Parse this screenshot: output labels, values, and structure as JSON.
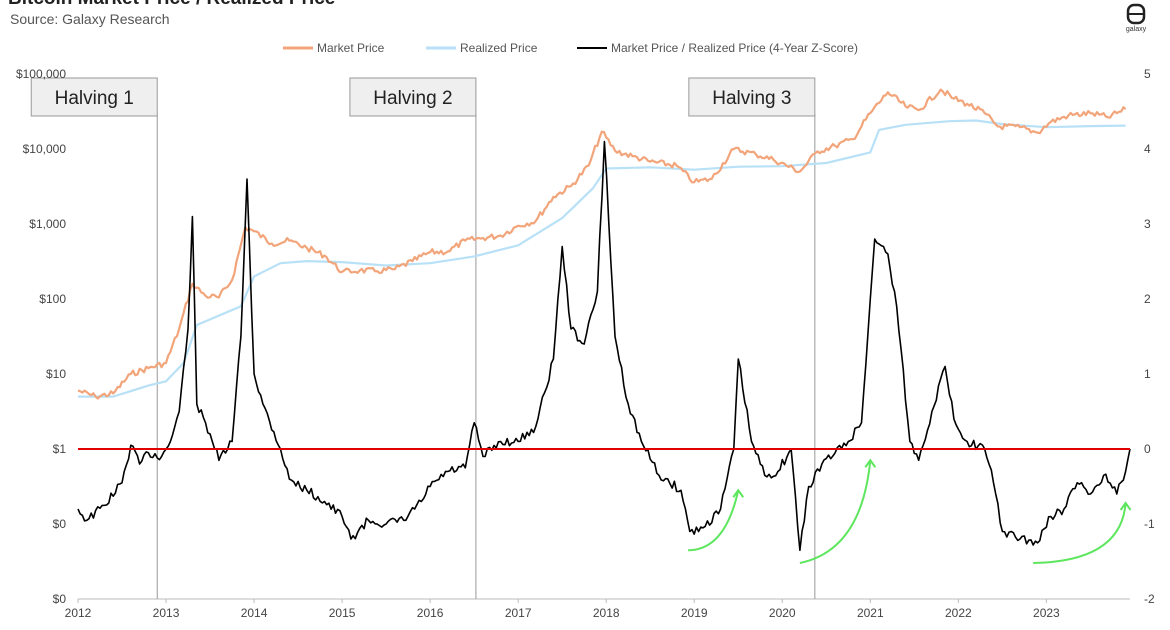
{
  "header": {
    "title": "Bitcoin Market Price / Realized Price",
    "subtitle": "Source: Galaxy Research",
    "logo_text": "galaxy"
  },
  "chart_data": {
    "type": "line",
    "title": "Bitcoin Market Price / Realized Price",
    "subtitle": "Source: Galaxy Research",
    "x_ticks": [
      "2012",
      "2013",
      "2014",
      "2015",
      "2016",
      "2017",
      "2018",
      "2019",
      "2020",
      "2021",
      "2022",
      "2023"
    ],
    "xlim": [
      2012.0,
      2023.95
    ],
    "y_left": {
      "scale": "log",
      "ticks": [
        "$0",
        "$0",
        "$1",
        "$10",
        "$100",
        "$1,000",
        "$10,000",
        "$100,000"
      ],
      "tick_values": [
        0.01,
        0.1,
        1,
        10,
        100,
        1000,
        10000,
        100000
      ],
      "ylim": [
        0.01,
        100000
      ]
    },
    "y_right": {
      "scale": "linear",
      "ticks": [
        "-2",
        "-1",
        "0",
        "1",
        "2",
        "3",
        "4",
        "5"
      ],
      "tick_values": [
        -2,
        -1,
        0,
        1,
        2,
        3,
        4,
        5
      ],
      "ylim": [
        -2,
        5
      ]
    },
    "legend": {
      "placement": "top",
      "entries": [
        "Market Price",
        "Realized Price",
        "Market Price / Realized Price (4-Year Z-Score)"
      ]
    },
    "halvings": [
      {
        "label": "Halving 1",
        "x": 2012.9
      },
      {
        "label": "Halving 2",
        "x": 2016.52
      },
      {
        "label": "Halving 3",
        "x": 2020.37
      }
    ],
    "reference_line": {
      "axis": "right",
      "value": 0
    },
    "series": [
      {
        "name": "Market Price",
        "axis": "left",
        "color": "#f2a57a",
        "points": [
          [
            2012.0,
            6
          ],
          [
            2012.2,
            5
          ],
          [
            2012.4,
            5.5
          ],
          [
            2012.6,
            10
          ],
          [
            2012.8,
            12
          ],
          [
            2013.0,
            14
          ],
          [
            2013.15,
            40
          ],
          [
            2013.3,
            160
          ],
          [
            2013.45,
            110
          ],
          [
            2013.6,
            105
          ],
          [
            2013.75,
            180
          ],
          [
            2013.9,
            900
          ],
          [
            2014.0,
            800
          ],
          [
            2014.2,
            550
          ],
          [
            2014.4,
            600
          ],
          [
            2014.6,
            480
          ],
          [
            2014.8,
            380
          ],
          [
            2015.0,
            230
          ],
          [
            2015.2,
            240
          ],
          [
            2015.4,
            235
          ],
          [
            2015.6,
            250
          ],
          [
            2015.8,
            320
          ],
          [
            2016.0,
            420
          ],
          [
            2016.2,
            430
          ],
          [
            2016.4,
            600
          ],
          [
            2016.6,
            650
          ],
          [
            2016.8,
            700
          ],
          [
            2017.0,
            950
          ],
          [
            2017.2,
            1100
          ],
          [
            2017.4,
            2300
          ],
          [
            2017.6,
            3200
          ],
          [
            2017.8,
            6000
          ],
          [
            2017.95,
            17000
          ],
          [
            2018.1,
            9500
          ],
          [
            2018.3,
            8000
          ],
          [
            2018.5,
            6800
          ],
          [
            2018.8,
            6000
          ],
          [
            2019.0,
            3600
          ],
          [
            2019.2,
            4000
          ],
          [
            2019.45,
            10000
          ],
          [
            2019.7,
            8500
          ],
          [
            2019.9,
            7200
          ],
          [
            2020.2,
            5000
          ],
          [
            2020.4,
            9300
          ],
          [
            2020.6,
            11000
          ],
          [
            2020.8,
            13500
          ],
          [
            2021.0,
            30000
          ],
          [
            2021.2,
            57000
          ],
          [
            2021.4,
            37000
          ],
          [
            2021.55,
            33000
          ],
          [
            2021.8,
            62000
          ],
          [
            2021.95,
            47000
          ],
          [
            2022.1,
            40000
          ],
          [
            2022.3,
            30000
          ],
          [
            2022.45,
            20000
          ],
          [
            2022.7,
            19500
          ],
          [
            2022.9,
            16500
          ],
          [
            2023.05,
            23000
          ],
          [
            2023.25,
            28000
          ],
          [
            2023.5,
            30000
          ],
          [
            2023.7,
            26500
          ],
          [
            2023.9,
            34000
          ]
        ]
      },
      {
        "name": "Realized Price",
        "axis": "left",
        "color": "#b8e1f7",
        "points": [
          [
            2012.0,
            5
          ],
          [
            2012.4,
            5
          ],
          [
            2012.8,
            7
          ],
          [
            2013.0,
            8
          ],
          [
            2013.2,
            14
          ],
          [
            2013.35,
            45
          ],
          [
            2013.6,
            60
          ],
          [
            2013.85,
            80
          ],
          [
            2014.0,
            200
          ],
          [
            2014.3,
            300
          ],
          [
            2014.6,
            320
          ],
          [
            2015.0,
            310
          ],
          [
            2015.5,
            280
          ],
          [
            2016.0,
            300
          ],
          [
            2016.5,
            370
          ],
          [
            2017.0,
            520
          ],
          [
            2017.5,
            1200
          ],
          [
            2017.85,
            3000
          ],
          [
            2018.0,
            5500
          ],
          [
            2018.5,
            5700
          ],
          [
            2019.0,
            5300
          ],
          [
            2019.5,
            5800
          ],
          [
            2020.0,
            5900
          ],
          [
            2020.5,
            6500
          ],
          [
            2021.0,
            9000
          ],
          [
            2021.1,
            18000
          ],
          [
            2021.4,
            21000
          ],
          [
            2021.9,
            23500
          ],
          [
            2022.2,
            24000
          ],
          [
            2022.5,
            21500
          ],
          [
            2023.0,
            19500
          ],
          [
            2023.5,
            20200
          ],
          [
            2023.9,
            20500
          ]
        ]
      },
      {
        "name": "Market Price / Realized Price (4-Year Z-Score)",
        "axis": "right",
        "color": "#000000",
        "points": [
          [
            2012.0,
            -0.8
          ],
          [
            2012.1,
            -0.95
          ],
          [
            2012.3,
            -0.75
          ],
          [
            2012.5,
            -0.45
          ],
          [
            2012.6,
            0.05
          ],
          [
            2012.7,
            -0.2
          ],
          [
            2012.8,
            -0.05
          ],
          [
            2012.95,
            -0.1
          ],
          [
            2013.05,
            0.1
          ],
          [
            2013.15,
            0.5
          ],
          [
            2013.25,
            1.6
          ],
          [
            2013.3,
            3.1
          ],
          [
            2013.35,
            0.6
          ],
          [
            2013.5,
            0.2
          ],
          [
            2013.6,
            -0.15
          ],
          [
            2013.75,
            0.1
          ],
          [
            2013.85,
            1.5
          ],
          [
            2013.92,
            3.6
          ],
          [
            2014.0,
            1.0
          ],
          [
            2014.1,
            0.6
          ],
          [
            2014.3,
            0.0
          ],
          [
            2014.4,
            -0.4
          ],
          [
            2014.6,
            -0.55
          ],
          [
            2014.8,
            -0.7
          ],
          [
            2015.0,
            -0.9
          ],
          [
            2015.1,
            -1.2
          ],
          [
            2015.3,
            -0.95
          ],
          [
            2015.5,
            -1.0
          ],
          [
            2015.7,
            -0.95
          ],
          [
            2015.9,
            -0.7
          ],
          [
            2016.0,
            -0.5
          ],
          [
            2016.2,
            -0.3
          ],
          [
            2016.4,
            -0.25
          ],
          [
            2016.5,
            0.35
          ],
          [
            2016.6,
            -0.1
          ],
          [
            2016.8,
            0.1
          ],
          [
            2017.0,
            0.1
          ],
          [
            2017.2,
            0.3
          ],
          [
            2017.4,
            1.2
          ],
          [
            2017.5,
            2.7
          ],
          [
            2017.6,
            1.6
          ],
          [
            2017.75,
            1.4
          ],
          [
            2017.9,
            2.1
          ],
          [
            2017.98,
            4.1
          ],
          [
            2018.1,
            1.5
          ],
          [
            2018.25,
            0.6
          ],
          [
            2018.4,
            0.1
          ],
          [
            2018.6,
            -0.35
          ],
          [
            2018.85,
            -0.55
          ],
          [
            2018.95,
            -1.1
          ],
          [
            2019.1,
            -1.05
          ],
          [
            2019.3,
            -0.8
          ],
          [
            2019.45,
            0.0
          ],
          [
            2019.5,
            1.2
          ],
          [
            2019.65,
            0.1
          ],
          [
            2019.8,
            -0.35
          ],
          [
            2019.95,
            -0.3
          ],
          [
            2020.1,
            0.0
          ],
          [
            2020.2,
            -1.35
          ],
          [
            2020.3,
            -0.5
          ],
          [
            2020.45,
            -0.2
          ],
          [
            2020.6,
            -0.05
          ],
          [
            2020.75,
            0.1
          ],
          [
            2020.9,
            0.35
          ],
          [
            2021.0,
            2.0
          ],
          [
            2021.05,
            2.8
          ],
          [
            2021.2,
            2.6
          ],
          [
            2021.3,
            1.9
          ],
          [
            2021.45,
            0.1
          ],
          [
            2021.55,
            -0.15
          ],
          [
            2021.7,
            0.5
          ],
          [
            2021.85,
            1.1
          ],
          [
            2021.95,
            0.4
          ],
          [
            2022.1,
            0.1
          ],
          [
            2022.3,
            0.0
          ],
          [
            2022.4,
            -0.45
          ],
          [
            2022.5,
            -1.1
          ],
          [
            2022.7,
            -1.2
          ],
          [
            2022.9,
            -1.25
          ],
          [
            2023.05,
            -0.9
          ],
          [
            2023.2,
            -0.8
          ],
          [
            2023.35,
            -0.45
          ],
          [
            2023.5,
            -0.6
          ],
          [
            2023.65,
            -0.35
          ],
          [
            2023.8,
            -0.6
          ],
          [
            2023.9,
            -0.3
          ],
          [
            2023.95,
            0.0
          ]
        ]
      }
    ]
  }
}
